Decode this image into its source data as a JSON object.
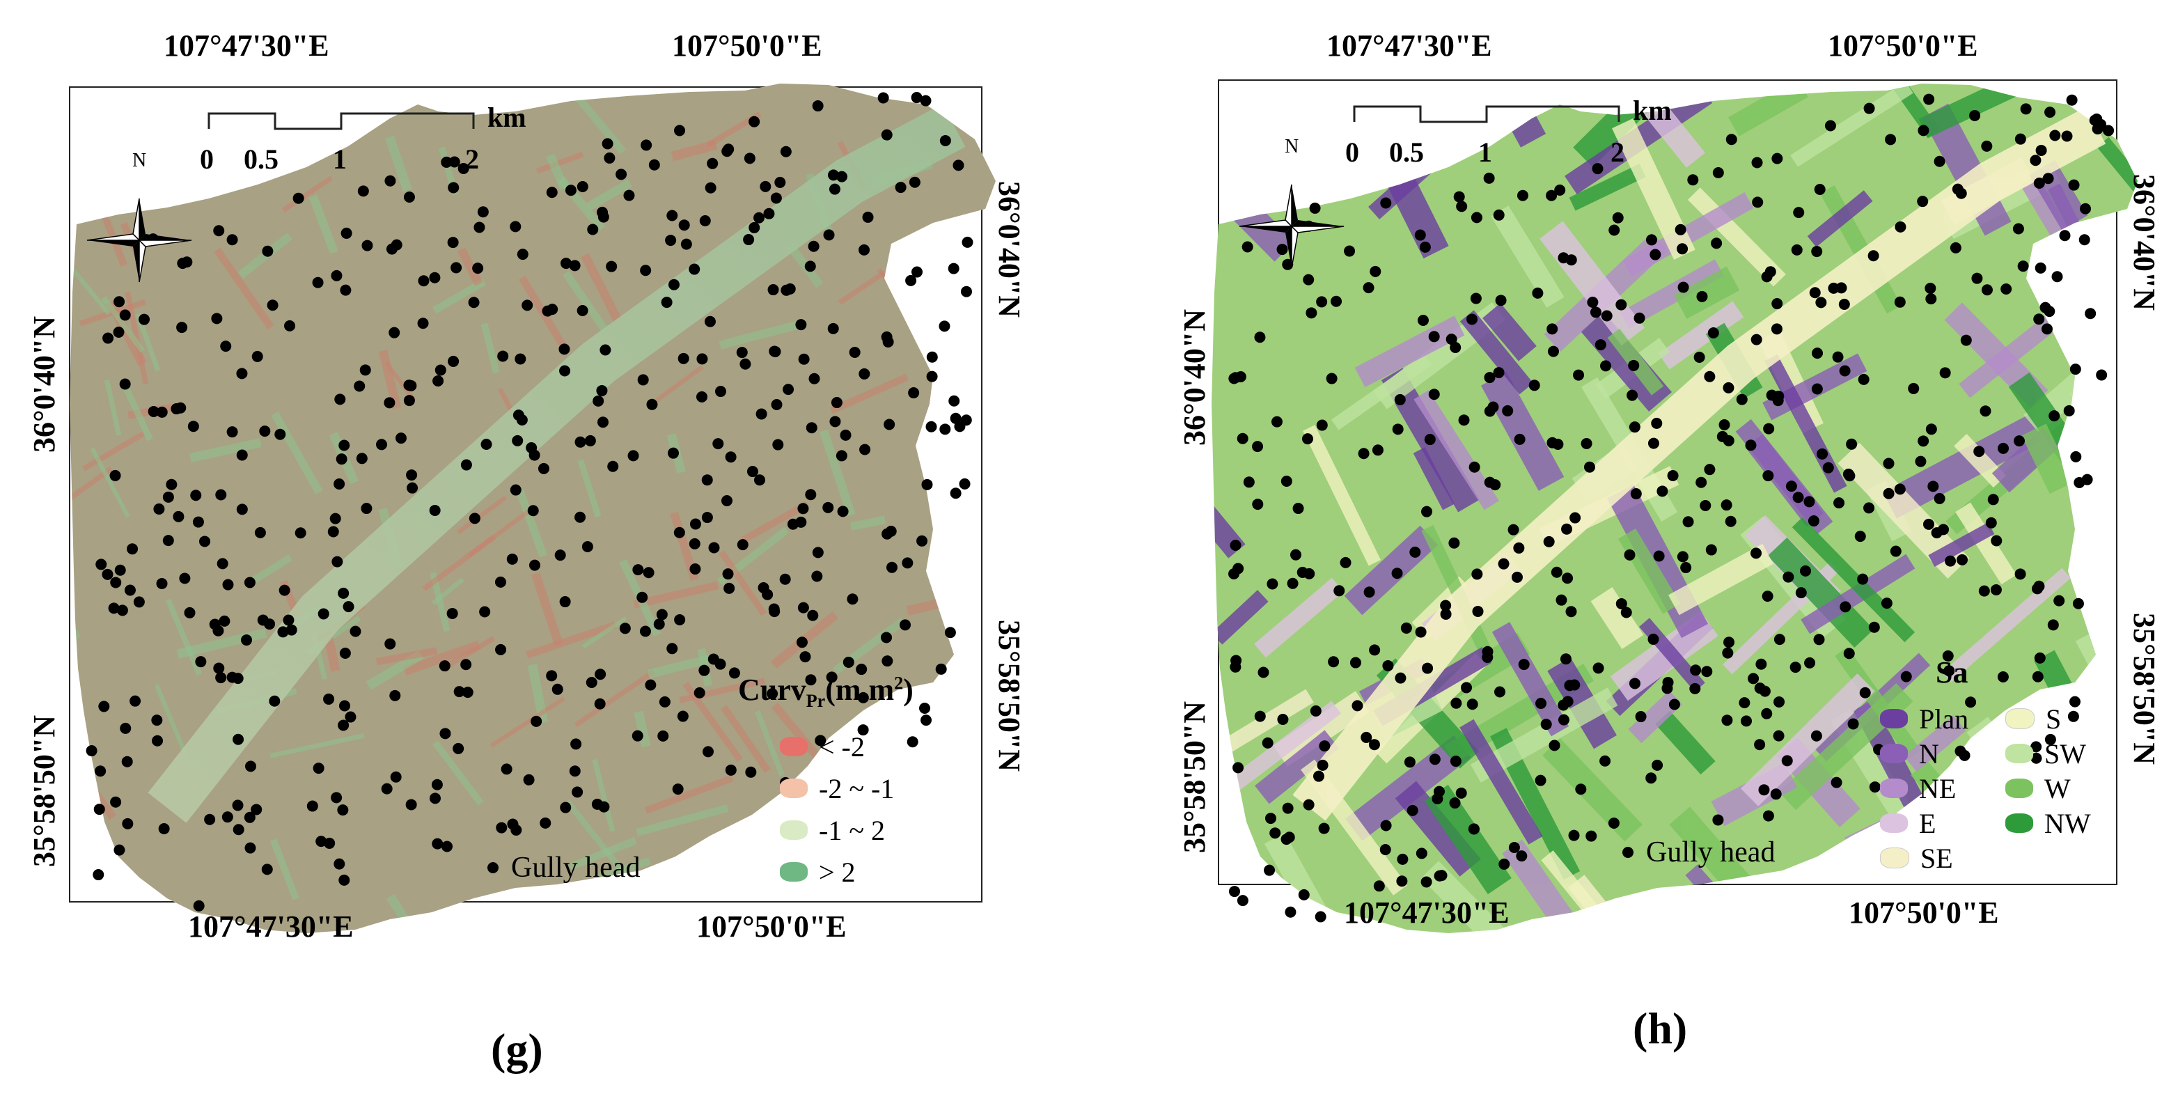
{
  "figure": {
    "panels": [
      {
        "id": "g",
        "label": "(g)",
        "coords": {
          "top_left_lon": "107°47'30\"E",
          "top_right_lon": "107°50'0\"E",
          "bottom_left_lon": "107°47'30\"E",
          "bottom_right_lon": "107°50'0\"E",
          "left_upper_lat": "36°0'40\"N",
          "left_lower_lat": "35°58'50\"N",
          "right_upper_lat": "36°0'40\"N",
          "right_lower_lat": "35°58'50\"N"
        },
        "scale_bar": {
          "ticks": [
            "0",
            "0.5",
            "1",
            "2"
          ],
          "unit": "km"
        },
        "north_label": "N",
        "legend": {
          "title_main": "Curv",
          "title_sub": "Pr",
          "title_unit": "(m m",
          "title_sup": "2",
          "title_close": ")",
          "items": [
            {
              "label": "< -2",
              "color": "#e8706a"
            },
            {
              "label": "-2 ~ -1",
              "color": "#f3c2a8"
            },
            {
              "label": "-1 ~ 2",
              "color": "#d8ebc4"
            },
            {
              "label": "> 2",
              "color": "#6fb783"
            }
          ]
        },
        "gully_label": "Gully head",
        "base_color": "#a8a183"
      },
      {
        "id": "h",
        "label": "(h)",
        "coords": {
          "top_left_lon": "107°47'30\"E",
          "top_right_lon": "107°50'0\"E",
          "bottom_left_lon": "107°47'30\"E",
          "bottom_right_lon": "107°50'0\"E",
          "left_upper_lat": "36°0'40\"N",
          "left_lower_lat": "35°58'50\"N",
          "right_upper_lat": "36°0'40\"N",
          "right_lower_lat": "35°58'50\"N"
        },
        "scale_bar": {
          "ticks": [
            "0",
            "0.5",
            "1",
            "2"
          ],
          "unit": "km"
        },
        "north_label": "N",
        "legend": {
          "title_main": "Sa",
          "items": [
            {
              "label": "Plan",
              "color": "#6b3fa0"
            },
            {
              "label": "N",
              "color": "#8a5fb5"
            },
            {
              "label": "NE",
              "color": "#b48ccb"
            },
            {
              "label": "E",
              "color": "#dcc3df"
            },
            {
              "label": "SE",
              "color": "#f5efc8"
            },
            {
              "label": "S",
              "color": "#f1f3c0"
            },
            {
              "label": "SW",
              "color": "#bfe3a0"
            },
            {
              "label": "W",
              "color": "#7cc35f"
            },
            {
              "label": "NW",
              "color": "#2e9b3a"
            }
          ]
        },
        "gully_label": "Gully head",
        "base_color": "#9fcf7a"
      }
    ]
  }
}
